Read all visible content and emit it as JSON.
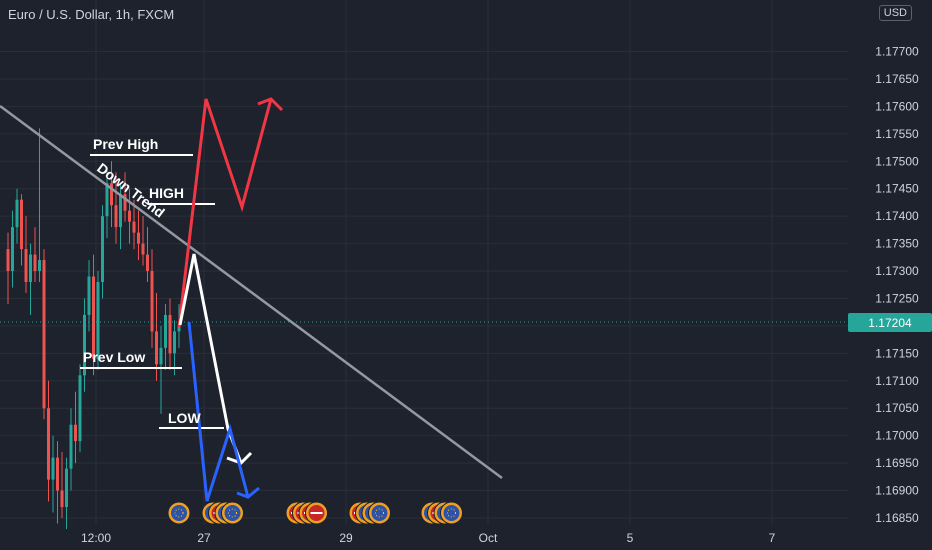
{
  "header": {
    "title": "Euro / U.S. Dollar, 1h, FXCM",
    "currency": "USD"
  },
  "price_label": {
    "value": "1.17204",
    "color": "#26a69a"
  },
  "colors": {
    "background": "#1e222d",
    "grid": "#2a2e39",
    "up_candle": "#26a69a",
    "down_candle": "#ef5350",
    "axis_text": "#d1d4dc",
    "trendline": "#9598a1",
    "bullish_path": "#f23645",
    "neutral_path": "#ffffff",
    "bearish_path": "#2962ff"
  },
  "chart_data": {
    "type": "candlestick",
    "title": "Euro / U.S. Dollar, 1h, FXCM",
    "ylabel": "USD",
    "ylim": [
      1.1682,
      1.1783
    ],
    "y_ticks": [
      "1.17700",
      "1.17650",
      "1.17600",
      "1.17550",
      "1.17500",
      "1.17450",
      "1.17400",
      "1.17350",
      "1.17300",
      "1.17250",
      "1.17200",
      "1.17150",
      "1.17100",
      "1.17050",
      "1.17000",
      "1.16950",
      "1.16900",
      "1.16850"
    ],
    "x_ticks": [
      "12:00",
      "27",
      "29",
      "Oct",
      "5",
      "7"
    ],
    "last_price": 1.17204,
    "candles": [
      [
        1.1734,
        1.1737,
        1.1724,
        1.173
      ],
      [
        1.173,
        1.1741,
        1.1727,
        1.1738
      ],
      [
        1.1738,
        1.1745,
        1.1735,
        1.1743
      ],
      [
        1.1743,
        1.1744,
        1.1731,
        1.1734
      ],
      [
        1.1734,
        1.174,
        1.1726,
        1.1728
      ],
      [
        1.1728,
        1.1735,
        1.1722,
        1.1733
      ],
      [
        1.1733,
        1.1738,
        1.1728,
        1.173
      ],
      [
        1.173,
        1.1756,
        1.1728,
        1.1732
      ],
      [
        1.1732,
        1.1734,
        1.1703,
        1.1705
      ],
      [
        1.1705,
        1.171,
        1.1688,
        1.1692
      ],
      [
        1.1692,
        1.17,
        1.1686,
        1.1696
      ],
      [
        1.1696,
        1.1699,
        1.1684,
        1.169
      ],
      [
        1.169,
        1.1697,
        1.1685,
        1.1687
      ],
      [
        1.1687,
        1.1696,
        1.1683,
        1.1694
      ],
      [
        1.1694,
        1.1705,
        1.169,
        1.1702
      ],
      [
        1.1702,
        1.1708,
        1.1695,
        1.1699
      ],
      [
        1.1699,
        1.1713,
        1.1697,
        1.1711
      ],
      [
        1.1711,
        1.1725,
        1.1708,
        1.1722
      ],
      [
        1.1722,
        1.1732,
        1.1719,
        1.1729
      ],
      [
        1.1729,
        1.1733,
        1.1711,
        1.1714
      ],
      [
        1.1714,
        1.173,
        1.1712,
        1.1728
      ],
      [
        1.1728,
        1.1742,
        1.1725,
        1.174
      ],
      [
        1.174,
        1.1749,
        1.1736,
        1.1746
      ],
      [
        1.1746,
        1.175,
        1.1738,
        1.1742
      ],
      [
        1.1742,
        1.1748,
        1.1735,
        1.1738
      ],
      [
        1.1738,
        1.1746,
        1.1734,
        1.1744
      ],
      [
        1.1744,
        1.1748,
        1.1739,
        1.1741
      ],
      [
        1.1741,
        1.1745,
        1.1735,
        1.1739
      ],
      [
        1.1739,
        1.1743,
        1.1734,
        1.1737
      ],
      [
        1.1737,
        1.1741,
        1.1732,
        1.1735
      ],
      [
        1.1735,
        1.174,
        1.1731,
        1.1733
      ],
      [
        1.1733,
        1.1738,
        1.1728,
        1.173
      ],
      [
        1.173,
        1.1734,
        1.1716,
        1.1719
      ],
      [
        1.1719,
        1.1726,
        1.171,
        1.1713
      ],
      [
        1.1713,
        1.172,
        1.1704,
        1.1716
      ],
      [
        1.1716,
        1.1724,
        1.1712,
        1.1722
      ],
      [
        1.1722,
        1.1725,
        1.1712,
        1.1715
      ],
      [
        1.1715,
        1.1721,
        1.1711,
        1.1719
      ],
      [
        1.1719,
        1.1724,
        1.1716,
        1.172
      ]
    ],
    "annotations": [
      {
        "text": "Prev High",
        "price": 1.17515
      },
      {
        "text": "HIGH",
        "price": 1.1742
      },
      {
        "text": "Prev Low",
        "price": 1.17115
      },
      {
        "text": "LOW",
        "price": 1.17008
      },
      {
        "text": "Down Trend"
      }
    ],
    "event_groups": [
      {
        "flags": [
          "eu"
        ]
      },
      {
        "flags": [
          "eu",
          "us",
          "eu",
          "eu"
        ]
      },
      {
        "flags": [
          "us",
          "us",
          "us",
          "us"
        ]
      },
      {
        "flags": [
          "us",
          "eu",
          "eu",
          "eu"
        ]
      },
      {
        "flags": [
          "eu",
          "us",
          "eu",
          "eu"
        ]
      }
    ]
  }
}
